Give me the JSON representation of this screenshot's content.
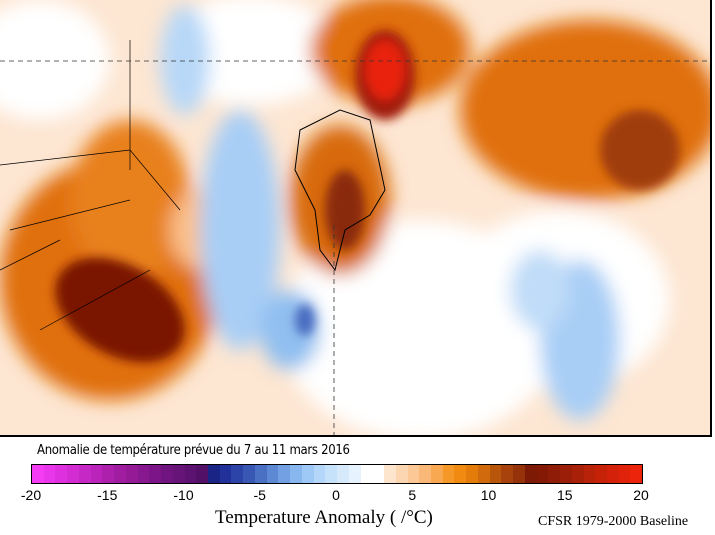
{
  "title": "Anomalie de température prévue du 7 au 11 mars 2016",
  "map": {
    "description_visible": "polar stereographic temperature anomaly map",
    "colors": {
      "strong_warm": "#e8200c",
      "dark_warm": "#7a1606",
      "warm": "#e07010",
      "light_warm": "#fbc08a",
      "neutral": "#ffffff",
      "light_cold": "#d8eafc",
      "cold": "#90bff0",
      "strong_cold": "#4a6cc0"
    }
  },
  "colorbar": {
    "min": -20,
    "max": 20,
    "ticks": [
      "-20",
      "-15",
      "-10",
      "-5",
      "0",
      "5",
      "10",
      "15",
      "20"
    ],
    "colors": [
      "#f43cf4",
      "#ea36ea",
      "#de30de",
      "#d22cd2",
      "#c628c6",
      "#ba24ba",
      "#ac20ac",
      "#a01ca0",
      "#941a96",
      "#881890",
      "#7c1688",
      "#701480",
      "#661478",
      "#5c1270",
      "#521066",
      "#1a2484",
      "#22309a",
      "#2c44a8",
      "#3858b4",
      "#4a70c4",
      "#5c88d4",
      "#72a0e2",
      "#88b6ee",
      "#9ec8f6",
      "#b4d6f8",
      "#c6e2fa",
      "#d6eafc",
      "#e6f2fe",
      "#ffffff",
      "#ffffff",
      "#fde4cc",
      "#fcd6b0",
      "#fbc896",
      "#f9b878",
      "#f7a850",
      "#f59828",
      "#f08a10",
      "#e47c0c",
      "#d06a0c",
      "#b8560c"
    ],
    "warm_colors": [
      "#a8420c",
      "#96320a",
      "#7c1a06",
      "#841a06",
      "#8e1c06",
      "#9a1e08",
      "#a82008",
      "#b82208",
      "#c62208",
      "#d4220a",
      "#e0220a",
      "#ec240c"
    ],
    "units_label": "Temperature Anomaly (    /°C)",
    "baseline_label": "CFSR 1979-2000 Baseline"
  }
}
